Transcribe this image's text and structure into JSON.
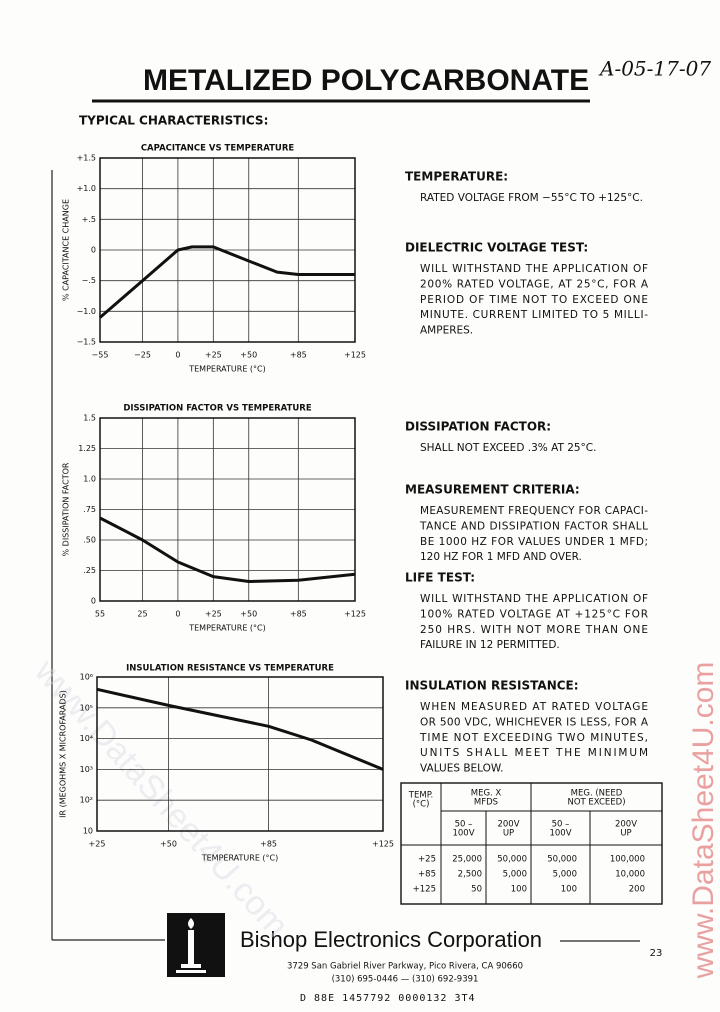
{
  "header": {
    "title": "METALIZED POLYCARBONATE",
    "handwritten_note": "A-05-17-07",
    "subtitle": "TYPICAL CHARACTERISTICS:"
  },
  "chart_data": [
    {
      "type": "line",
      "title": "CAPACITANCE VS TEMPERATURE",
      "x_label": "TEMPERATURE (°C)",
      "y_label": "% CAPACITANCE CHANGE",
      "x": [
        -55,
        -25,
        0,
        10,
        25,
        50,
        70,
        85,
        125
      ],
      "values": [
        -1.1,
        -0.5,
        0,
        0.05,
        0.05,
        -0.18,
        -0.36,
        -0.4,
        -0.4
      ],
      "color": "#111111",
      "xlim": [
        -55,
        125
      ],
      "xticks": [
        {
          "value": -55,
          "label": "−55"
        },
        {
          "value": -25,
          "label": "−25"
        },
        0,
        {
          "value": 25,
          "label": "+25"
        },
        {
          "value": 50,
          "label": "+50"
        },
        {
          "value": 85,
          "label": "+85"
        },
        {
          "value": 125,
          "label": "+125"
        }
      ],
      "ylim": [
        -1.5,
        1.5
      ],
      "yticks": [
        {
          "value": 1.5,
          "label": "+1.5"
        },
        {
          "value": 1,
          "label": "+1.0"
        },
        {
          "value": 0.5,
          "label": "+.5"
        },
        0,
        {
          "value": -0.5,
          "label": "−.5"
        },
        {
          "value": -1,
          "label": "−1.0"
        },
        {
          "value": -1.5,
          "label": "−1.5"
        }
      ],
      "grid": true,
      "log_y": false
    },
    {
      "type": "line",
      "title": "DISSIPATION FACTOR VS TEMPERATURE",
      "x_label": "TEMPERATURE (°C)",
      "y_label": "% DISSIPATION FACTOR",
      "x": [
        -55,
        -25,
        0,
        25,
        50,
        85,
        125
      ],
      "values": [
        0.68,
        0.5,
        0.32,
        0.2,
        0.16,
        0.17,
        0.22
      ],
      "color": "#111111",
      "xlim": [
        -55,
        125
      ],
      "xticks": [
        {
          "value": -55,
          "label": "55"
        },
        {
          "value": -25,
          "label": "25"
        },
        0,
        {
          "value": 25,
          "label": "+25"
        },
        {
          "value": 50,
          "label": "+50"
        },
        {
          "value": 85,
          "label": "+85"
        },
        {
          "value": 125,
          "label": "+125"
        }
      ],
      "ylim": [
        0,
        1.5
      ],
      "yticks": [
        1.5,
        1.25,
        {
          "value": 1,
          "label": "1.0"
        },
        {
          "value": 0.75,
          "label": ".75"
        },
        {
          "value": 0.5,
          "label": ".50"
        },
        {
          "value": 0.25,
          "label": ".25"
        },
        0
      ],
      "grid": true,
      "log_y": false
    },
    {
      "type": "line",
      "title": "INSULATION RESISTANCE VS TEMPERATURE",
      "x_label": "TEMPERATURE (°C)",
      "y_label": "IR (MEGOHMS X MICROFARADS)",
      "x": [
        25,
        50,
        85,
        100,
        125
      ],
      "values": [
        400000,
        120000,
        25000,
        9000,
        1000
      ],
      "color": "#111111",
      "xlim": [
        25,
        125
      ],
      "xticks": [
        {
          "value": 25,
          "label": "+25"
        },
        {
          "value": 50,
          "label": "+50"
        },
        {
          "value": 85,
          "label": "+85"
        },
        {
          "value": 125,
          "label": "+125"
        }
      ],
      "ylim": [
        10,
        1000000
      ],
      "yticks": [
        {
          "value": 1000000,
          "label": "10⁶"
        },
        {
          "value": 100000,
          "label": "10⁵"
        },
        {
          "value": 10000,
          "label": "10⁴"
        },
        {
          "value": 1000,
          "label": "10³"
        },
        {
          "value": 100,
          "label": "10²"
        },
        10
      ],
      "grid": true,
      "log_y": true
    }
  ],
  "sections": [
    {
      "heading": "TEMPERATURE:",
      "lines": [
        "RATED VOLTAGE FROM −55°C TO +125°C."
      ]
    },
    {
      "heading": "DIELECTRIC VOLTAGE TEST:",
      "lines": [
        "WILL WITHSTAND THE APPLICATION OF",
        "200% RATED VOLTAGE, AT 25°C, FOR A",
        "PERIOD OF TIME NOT TO EXCEED ONE",
        "MINUTE. CURRENT LIMITED TO 5 MILLI-",
        "AMPERES."
      ]
    },
    {
      "heading": "DISSIPATION FACTOR:",
      "lines": [
        "SHALL NOT EXCEED .3% AT 25°C."
      ]
    },
    {
      "heading": "MEASUREMENT CRITERIA:",
      "lines": [
        "MEASUREMENT FREQUENCY FOR CAPACI-",
        "TANCE AND DISSIPATION FACTOR SHALL",
        "BE 1000 HZ FOR VALUES UNDER 1 MFD;",
        "120 HZ FOR 1 MFD AND OVER."
      ]
    },
    {
      "heading": "LIFE TEST:",
      "lines": [
        "WILL WITHSTAND THE APPLICATION OF",
        "100% RATED VOLTAGE AT +125°C FOR",
        "250 HRS. WITH NOT MORE THAN ONE",
        "FAILURE IN 12 PERMITTED."
      ]
    },
    {
      "heading": "INSULATION RESISTANCE:",
      "lines": [
        "WHEN MEASURED AT RATED VOLTAGE",
        "OR 500 VDC, WHICHEVER IS LESS, FOR A",
        "TIME NOT EXCEEDING TWO MINUTES,",
        "UNITS SHALL MEET THE MINIMUM",
        "VALUES BELOW."
      ]
    }
  ],
  "table": {
    "col_temp": "TEMP. (°C)",
    "group1": "MEG. X MFDS",
    "group2": "MEG. (NEED NOT EXCEED)",
    "sub": [
      "50 – 100V",
      "200V UP",
      "50 – 100V",
      "200V UP"
    ],
    "rows": [
      [
        "+25",
        "25,000",
        "50,000",
        "50,000",
        "100,000"
      ],
      [
        "+85",
        "2,500",
        "5,000",
        "5,000",
        "10,000"
      ],
      [
        "+125",
        "50",
        "100",
        "100",
        "200"
      ]
    ]
  },
  "footer": {
    "company": "Bishop Electronics Corporation",
    "address": "3729 San Gabriel River Parkway, Pico Rivera, CA 90660",
    "phone": "(310) 695-0446 — (310) 692-9391",
    "page_number": "23",
    "code": "D 88E 1457792 0000132 3T4"
  },
  "watermarks": [
    "www.DataSheet4U.com",
    "www.DataSheet4U.com"
  ]
}
